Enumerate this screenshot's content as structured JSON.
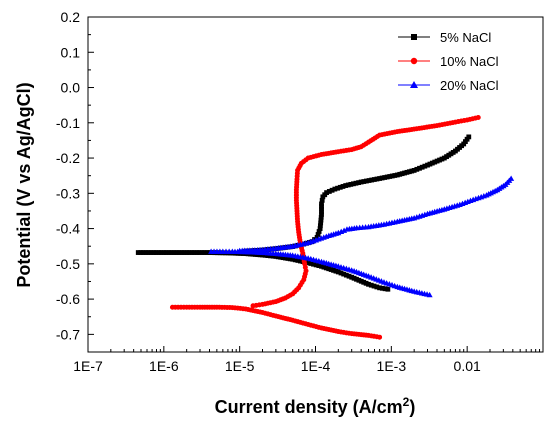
{
  "chart_data": {
    "type": "scatter",
    "title": "",
    "xlabel": "Current density  (A/cm",
    "xlabel_sup": "2",
    "xlabel_close": ")",
    "ylabel": "Potential (V vs Ag/AgCl)",
    "xscale": "log",
    "xlim": [
      1e-07,
      0.1
    ],
    "ylim": [
      -0.75,
      0.2
    ],
    "xticks": [
      1e-07,
      1e-06,
      1e-05,
      0.0001,
      0.001,
      0.01
    ],
    "xtick_labels": [
      "1E-7",
      "1E-6",
      "1E-5",
      "1E-4",
      "1E-3",
      "0.01"
    ],
    "yticks": [
      0.2,
      0.1,
      0.0,
      -0.1,
      -0.2,
      -0.3,
      -0.4,
      -0.5,
      -0.6,
      -0.7
    ],
    "ytick_labels": [
      "0.2",
      "0.1",
      "0.0",
      "-0.1",
      "-0.2",
      "-0.3",
      "-0.4",
      "-0.5",
      "-0.6",
      "-0.7"
    ],
    "grid": false,
    "legend_position": "top-right",
    "series": [
      {
        "name": "5% NaCl",
        "color": "#000000",
        "marker": "square",
        "points": [
          [
            4.6e-07,
            -0.468
          ],
          [
            1e-06,
            -0.468
          ],
          [
            2e-06,
            -0.468
          ],
          [
            4e-06,
            -0.468
          ],
          [
            7e-06,
            -0.469
          ],
          [
            1.2e-05,
            -0.471
          ],
          [
            2e-05,
            -0.475
          ],
          [
            3e-05,
            -0.479
          ],
          [
            5e-05,
            -0.487
          ],
          [
            8e-05,
            -0.497
          ],
          [
            0.00012,
            -0.507
          ],
          [
            0.0002,
            -0.523
          ],
          [
            0.0003,
            -0.538
          ],
          [
            0.0005,
            -0.558
          ],
          [
            0.0007,
            -0.568
          ],
          [
            0.0009,
            -0.572
          ],
          [
            1.2e-05,
            -0.464
          ],
          [
            2e-05,
            -0.461
          ],
          [
            3e-05,
            -0.457
          ],
          [
            5e-05,
            -0.451
          ],
          [
            7e-05,
            -0.444
          ],
          [
            9e-05,
            -0.437
          ],
          [
            0.000105,
            -0.425
          ],
          [
            0.000115,
            -0.4
          ],
          [
            0.00012,
            -0.36
          ],
          [
            0.00012,
            -0.33
          ],
          [
            0.000125,
            -0.31
          ],
          [
            0.00014,
            -0.298
          ],
          [
            0.00018,
            -0.288
          ],
          [
            0.00025,
            -0.278
          ],
          [
            0.0004,
            -0.268
          ],
          [
            0.0007,
            -0.258
          ],
          [
            0.0012,
            -0.248
          ],
          [
            0.002,
            -0.235
          ],
          [
            0.003,
            -0.22
          ],
          [
            0.005,
            -0.2
          ],
          [
            0.007,
            -0.18
          ],
          [
            0.009,
            -0.16
          ],
          [
            0.0105,
            -0.14
          ]
        ]
      },
      {
        "name": "10% NaCl",
        "color": "#ff0000",
        "marker": "circle",
        "points": [
          [
            1.3e-06,
            -0.623
          ],
          [
            2e-06,
            -0.623
          ],
          [
            3e-06,
            -0.623
          ],
          [
            5e-06,
            -0.623
          ],
          [
            8e-06,
            -0.624
          ],
          [
            1.2e-05,
            -0.628
          ],
          [
            2e-05,
            -0.638
          ],
          [
            3e-05,
            -0.648
          ],
          [
            5e-05,
            -0.66
          ],
          [
            8e-05,
            -0.672
          ],
          [
            0.00012,
            -0.682
          ],
          [
            0.0002,
            -0.692
          ],
          [
            0.0003,
            -0.698
          ],
          [
            0.0005,
            -0.703
          ],
          [
            0.0007,
            -0.708
          ],
          [
            1.5e-05,
            -0.619
          ],
          [
            2e-05,
            -0.615
          ],
          [
            3e-05,
            -0.607
          ],
          [
            4e-05,
            -0.597
          ],
          [
            5e-05,
            -0.585
          ],
          [
            6e-05,
            -0.568
          ],
          [
            7e-05,
            -0.545
          ],
          [
            7.5e-05,
            -0.52
          ],
          [
            7.2e-05,
            -0.5
          ],
          [
            6.8e-05,
            -0.47
          ],
          [
            6.3e-05,
            -0.44
          ],
          [
            6e-05,
            -0.41
          ],
          [
            5.8e-05,
            -0.38
          ],
          [
            5.7e-05,
            -0.35
          ],
          [
            5.6e-05,
            -0.32
          ],
          [
            5.6e-05,
            -0.29
          ],
          [
            5.7e-05,
            -0.26
          ],
          [
            5.8e-05,
            -0.235
          ],
          [
            6.5e-05,
            -0.215
          ],
          [
            8e-05,
            -0.2
          ],
          [
            0.00012,
            -0.19
          ],
          [
            0.0002,
            -0.182
          ],
          [
            0.0003,
            -0.176
          ],
          [
            0.0004,
            -0.168
          ],
          [
            0.0005,
            -0.155
          ],
          [
            0.0007,
            -0.135
          ],
          [
            0.0012,
            -0.125
          ],
          [
            0.002,
            -0.118
          ],
          [
            0.004,
            -0.108
          ],
          [
            0.007,
            -0.098
          ],
          [
            0.01,
            -0.092
          ],
          [
            0.014,
            -0.085
          ]
        ]
      },
      {
        "name": "20% NaCl",
        "color": "#0000ff",
        "marker": "triangle",
        "points": [
          [
            4.2e-06,
            -0.465
          ],
          [
            6e-06,
            -0.465
          ],
          [
            8e-06,
            -0.465
          ],
          [
            1.2e-05,
            -0.466
          ],
          [
            2e-05,
            -0.468
          ],
          [
            3e-05,
            -0.471
          ],
          [
            5e-05,
            -0.476
          ],
          [
            8e-05,
            -0.484
          ],
          [
            0.00012,
            -0.494
          ],
          [
            0.0002,
            -0.507
          ],
          [
            0.0003,
            -0.518
          ],
          [
            0.0005,
            -0.535
          ],
          [
            0.0008,
            -0.552
          ],
          [
            0.0012,
            -0.565
          ],
          [
            0.002,
            -0.578
          ],
          [
            0.0032,
            -0.588
          ],
          [
            1e-05,
            -0.463
          ],
          [
            2e-05,
            -0.46
          ],
          [
            3e-05,
            -0.456
          ],
          [
            5e-05,
            -0.45
          ],
          [
            8e-05,
            -0.44
          ],
          [
            0.00011,
            -0.43
          ],
          [
            0.00015,
            -0.42
          ],
          [
            0.0002,
            -0.412
          ],
          [
            0.00026,
            -0.402
          ],
          [
            0.00035,
            -0.398
          ],
          [
            0.0005,
            -0.395
          ],
          [
            0.0008,
            -0.388
          ],
          [
            0.0012,
            -0.38
          ],
          [
            0.002,
            -0.37
          ],
          [
            0.003,
            -0.358
          ],
          [
            0.005,
            -0.345
          ],
          [
            0.008,
            -0.332
          ],
          [
            0.012,
            -0.318
          ],
          [
            0.018,
            -0.305
          ],
          [
            0.025,
            -0.29
          ],
          [
            0.032,
            -0.275
          ],
          [
            0.038,
            -0.258
          ]
        ]
      }
    ]
  }
}
